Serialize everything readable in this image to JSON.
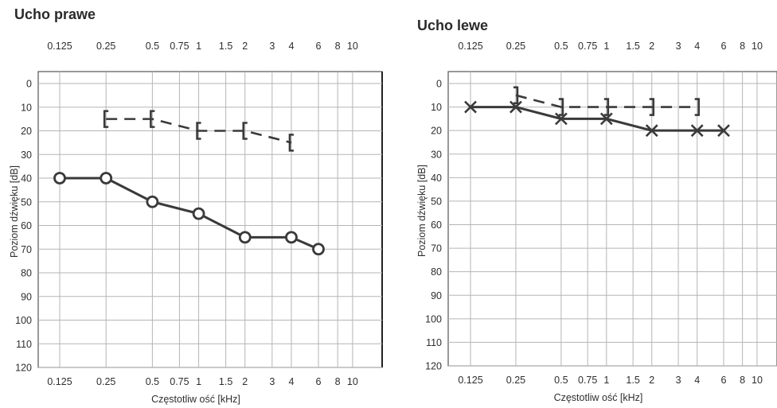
{
  "chart_data": [
    {
      "type": "line",
      "title": "Ucho prawe",
      "xlabel": "Częstotliw ość [kHz]",
      "ylabel": "Poziom dźwięku [dB]",
      "x_scale": "log",
      "x_ticks": [
        "0.125",
        "0.25",
        "0.5",
        "0.75",
        "1",
        "1.5",
        "2",
        "3",
        "4",
        "6",
        "8",
        "10"
      ],
      "x_ticks_bottom": [
        "0.125",
        "0.25",
        "0.5",
        "0.75",
        "1",
        "1.5",
        "2",
        "3",
        "4",
        "6",
        "8",
        "10"
      ],
      "y_ticks": [
        "0",
        "10",
        "20",
        "30",
        "40",
        "50",
        "60",
        "70",
        "80",
        "90",
        "100",
        "110",
        "120"
      ],
      "ylim": [
        120,
        0
      ],
      "y_inverted": true,
      "grid": true,
      "series": [
        {
          "marker": "[",
          "line": "dashed",
          "x": [
            0.25,
            0.5,
            1,
            2,
            4
          ],
          "y": [
            15,
            15,
            20,
            20,
            25
          ]
        },
        {
          "marker": "o",
          "line": "solid",
          "x": [
            0.125,
            0.25,
            0.5,
            1,
            2,
            4,
            6
          ],
          "y": [
            40,
            40,
            50,
            55,
            65,
            65,
            70
          ]
        }
      ]
    },
    {
      "type": "line",
      "title": "Ucho lewe",
      "xlabel": "Częstotliw ość [kHz]",
      "ylabel": "Poziom dźwięku [dB]",
      "x_scale": "log",
      "x_ticks": [
        "0.125",
        "0.25",
        "0.5",
        "0.75",
        "1",
        "1.5",
        "2",
        "3",
        "4",
        "6",
        "8",
        "10"
      ],
      "x_ticks_bottom": [
        "0.125",
        "0.25",
        "0.5",
        "0.75",
        "1",
        "1.5",
        "2",
        "3",
        "4",
        "6",
        "8",
        "10"
      ],
      "y_ticks": [
        "0",
        "10",
        "20",
        "30",
        "40",
        "50",
        "60",
        "70",
        "80",
        "90",
        "100",
        "110",
        "120"
      ],
      "ylim": [
        120,
        0
      ],
      "y_inverted": true,
      "grid": true,
      "series": [
        {
          "marker": "]",
          "line": "dashed",
          "x": [
            0.25,
            0.5,
            1,
            2,
            4
          ],
          "y": [
            5,
            10,
            10,
            10,
            10
          ]
        },
        {
          "marker": "x",
          "line": "solid",
          "x": [
            0.125,
            0.25,
            0.5,
            1,
            2,
            4,
            6
          ],
          "y": [
            10,
            10,
            15,
            15,
            20,
            20,
            20
          ]
        }
      ]
    }
  ],
  "colors": {
    "line": "#3a3a3a",
    "grid": "#b5b5b5",
    "text": "#2e2e2e"
  }
}
